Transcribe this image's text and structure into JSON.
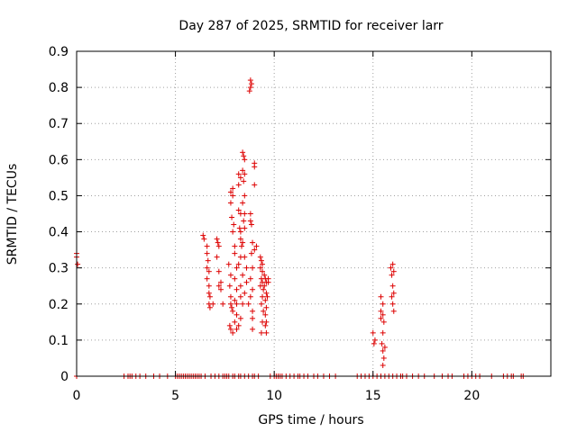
{
  "chart_data": {
    "type": "scatter",
    "title": "Day 287 of 2025, SRMTID for receiver larr",
    "xlabel": "GPS time / hours",
    "ylabel": "SRMTID / TECUs",
    "xlim": [
      0,
      24
    ],
    "ylim": [
      0,
      0.9
    ],
    "xticks": [
      0,
      5,
      10,
      15,
      20
    ],
    "xtick_labels": [
      "0",
      "5",
      "10",
      "15",
      "20"
    ],
    "yticks": [
      0,
      0.1,
      0.2,
      0.3,
      0.4,
      0.5,
      0.6,
      0.7,
      0.8,
      0.9
    ],
    "ytick_labels": [
      "0",
      "0.1",
      "0.2",
      "0.3",
      "0.4",
      "0.5",
      "0.6",
      "0.7",
      "0.8",
      "0.9"
    ],
    "grid": true,
    "marker": "+",
    "color": "#dd0000",
    "series": [
      {
        "name": "SRMTID",
        "points": [
          [
            0.0,
            0.34
          ],
          [
            0.0,
            0.33
          ],
          [
            0.05,
            0.31
          ],
          [
            0.0,
            0.0
          ],
          [
            6.4,
            0.39
          ],
          [
            6.45,
            0.38
          ],
          [
            6.6,
            0.36
          ],
          [
            6.6,
            0.34
          ],
          [
            6.65,
            0.32
          ],
          [
            6.6,
            0.3
          ],
          [
            6.7,
            0.29
          ],
          [
            6.6,
            0.27
          ],
          [
            6.7,
            0.25
          ],
          [
            6.7,
            0.23
          ],
          [
            6.75,
            0.22
          ],
          [
            6.7,
            0.2
          ],
          [
            6.75,
            0.19
          ],
          [
            6.9,
            0.2
          ],
          [
            7.1,
            0.38
          ],
          [
            7.15,
            0.37
          ],
          [
            7.2,
            0.36
          ],
          [
            7.1,
            0.33
          ],
          [
            7.2,
            0.29
          ],
          [
            7.3,
            0.26
          ],
          [
            7.2,
            0.25
          ],
          [
            7.3,
            0.24
          ],
          [
            7.4,
            0.2
          ],
          [
            7.7,
            0.31
          ],
          [
            7.8,
            0.28
          ],
          [
            7.75,
            0.25
          ],
          [
            7.8,
            0.22
          ],
          [
            7.8,
            0.2
          ],
          [
            7.85,
            0.19
          ],
          [
            7.9,
            0.18
          ],
          [
            7.75,
            0.14
          ],
          [
            7.8,
            0.13
          ],
          [
            7.9,
            0.12
          ],
          [
            7.8,
            0.48
          ],
          [
            7.9,
            0.5
          ],
          [
            7.8,
            0.51
          ],
          [
            7.9,
            0.52
          ],
          [
            7.85,
            0.44
          ],
          [
            7.95,
            0.42
          ],
          [
            7.9,
            0.4
          ],
          [
            8.0,
            0.36
          ],
          [
            8.0,
            0.34
          ],
          [
            8.1,
            0.3
          ],
          [
            8.0,
            0.27
          ],
          [
            8.1,
            0.24
          ],
          [
            8.0,
            0.21
          ],
          [
            8.1,
            0.2
          ],
          [
            8.1,
            0.17
          ],
          [
            8.0,
            0.15
          ],
          [
            8.2,
            0.14
          ],
          [
            8.1,
            0.13
          ],
          [
            8.2,
            0.56
          ],
          [
            8.2,
            0.53
          ],
          [
            8.3,
            0.55
          ],
          [
            8.2,
            0.46
          ],
          [
            8.3,
            0.45
          ],
          [
            8.25,
            0.41
          ],
          [
            8.3,
            0.4
          ],
          [
            8.3,
            0.38
          ],
          [
            8.35,
            0.36
          ],
          [
            8.3,
            0.33
          ],
          [
            8.2,
            0.31
          ],
          [
            8.4,
            0.28
          ],
          [
            8.3,
            0.25
          ],
          [
            8.3,
            0.22
          ],
          [
            8.4,
            0.2
          ],
          [
            8.3,
            0.16
          ],
          [
            8.4,
            0.62
          ],
          [
            8.45,
            0.61
          ],
          [
            8.5,
            0.6
          ],
          [
            8.4,
            0.57
          ],
          [
            8.5,
            0.56
          ],
          [
            8.45,
            0.54
          ],
          [
            8.5,
            0.5
          ],
          [
            8.4,
            0.48
          ],
          [
            8.5,
            0.45
          ],
          [
            8.45,
            0.43
          ],
          [
            8.5,
            0.41
          ],
          [
            8.4,
            0.37
          ],
          [
            8.5,
            0.33
          ],
          [
            8.6,
            0.3
          ],
          [
            8.6,
            0.26
          ],
          [
            8.5,
            0.23
          ],
          [
            8.7,
            0.2
          ],
          [
            8.8,
            0.82
          ],
          [
            8.8,
            0.8
          ],
          [
            8.75,
            0.79
          ],
          [
            8.85,
            0.81
          ],
          [
            8.8,
            0.45
          ],
          [
            8.8,
            0.43
          ],
          [
            8.85,
            0.42
          ],
          [
            8.9,
            0.37
          ],
          [
            8.85,
            0.34
          ],
          [
            8.9,
            0.3
          ],
          [
            8.8,
            0.27
          ],
          [
            8.9,
            0.24
          ],
          [
            8.8,
            0.22
          ],
          [
            8.9,
            0.18
          ],
          [
            8.9,
            0.16
          ],
          [
            8.9,
            0.13
          ],
          [
            9.0,
            0.59
          ],
          [
            9.0,
            0.58
          ],
          [
            9.0,
            0.53
          ],
          [
            9.1,
            0.36
          ],
          [
            9.0,
            0.35
          ],
          [
            9.3,
            0.33
          ],
          [
            9.35,
            0.32
          ],
          [
            9.4,
            0.31
          ],
          [
            9.3,
            0.3
          ],
          [
            9.4,
            0.29
          ],
          [
            9.35,
            0.27
          ],
          [
            9.4,
            0.26
          ],
          [
            9.3,
            0.25
          ],
          [
            9.45,
            0.24
          ],
          [
            9.4,
            0.22
          ],
          [
            9.35,
            0.2
          ],
          [
            9.45,
            0.18
          ],
          [
            9.4,
            0.15
          ],
          [
            9.35,
            0.12
          ],
          [
            9.5,
            0.28
          ],
          [
            9.55,
            0.27
          ],
          [
            9.6,
            0.26
          ],
          [
            9.5,
            0.25
          ],
          [
            9.6,
            0.23
          ],
          [
            9.55,
            0.21
          ],
          [
            9.6,
            0.19
          ],
          [
            9.55,
            0.17
          ],
          [
            9.6,
            0.15
          ],
          [
            9.55,
            0.14
          ],
          [
            9.6,
            0.12
          ],
          [
            9.7,
            0.27
          ],
          [
            9.7,
            0.26
          ],
          [
            9.65,
            0.22
          ],
          [
            15.0,
            0.12
          ],
          [
            15.1,
            0.1
          ],
          [
            15.05,
            0.09
          ],
          [
            15.4,
            0.22
          ],
          [
            15.5,
            0.2
          ],
          [
            15.4,
            0.18
          ],
          [
            15.5,
            0.17
          ],
          [
            15.4,
            0.16
          ],
          [
            15.55,
            0.15
          ],
          [
            15.5,
            0.12
          ],
          [
            15.45,
            0.09
          ],
          [
            15.6,
            0.08
          ],
          [
            15.5,
            0.07
          ],
          [
            15.55,
            0.05
          ],
          [
            15.5,
            0.03
          ],
          [
            15.9,
            0.3
          ],
          [
            16.0,
            0.31
          ],
          [
            16.05,
            0.29
          ],
          [
            15.95,
            0.28
          ],
          [
            16.0,
            0.25
          ],
          [
            16.05,
            0.23
          ],
          [
            15.95,
            0.22
          ],
          [
            16.0,
            0.2
          ],
          [
            16.05,
            0.18
          ],
          [
            2.4,
            0
          ],
          [
            2.6,
            0
          ],
          [
            2.7,
            0
          ],
          [
            2.8,
            0
          ],
          [
            3.0,
            0
          ],
          [
            3.2,
            0
          ],
          [
            3.5,
            0
          ],
          [
            3.9,
            0
          ],
          [
            4.2,
            0
          ],
          [
            4.6,
            0
          ],
          [
            5.0,
            0
          ],
          [
            5.1,
            0
          ],
          [
            5.2,
            0
          ],
          [
            5.3,
            0
          ],
          [
            5.4,
            0
          ],
          [
            5.5,
            0
          ],
          [
            5.6,
            0
          ],
          [
            5.7,
            0
          ],
          [
            5.8,
            0
          ],
          [
            5.9,
            0
          ],
          [
            6.0,
            0
          ],
          [
            6.1,
            0
          ],
          [
            6.2,
            0
          ],
          [
            6.3,
            0
          ],
          [
            6.5,
            0
          ],
          [
            6.8,
            0
          ],
          [
            7.0,
            0
          ],
          [
            7.2,
            0
          ],
          [
            7.4,
            0
          ],
          [
            7.5,
            0
          ],
          [
            7.6,
            0
          ],
          [
            7.7,
            0
          ],
          [
            7.9,
            0
          ],
          [
            8.0,
            0
          ],
          [
            8.2,
            0
          ],
          [
            8.3,
            0
          ],
          [
            8.5,
            0
          ],
          [
            8.7,
            0
          ],
          [
            8.9,
            0
          ],
          [
            9.0,
            0
          ],
          [
            9.2,
            0
          ],
          [
            9.8,
            0
          ],
          [
            10.0,
            0
          ],
          [
            10.1,
            0
          ],
          [
            10.2,
            0
          ],
          [
            10.3,
            0
          ],
          [
            10.4,
            0
          ],
          [
            10.6,
            0
          ],
          [
            10.8,
            0
          ],
          [
            11.0,
            0
          ],
          [
            11.2,
            0
          ],
          [
            11.3,
            0
          ],
          [
            11.5,
            0
          ],
          [
            11.7,
            0
          ],
          [
            12.0,
            0
          ],
          [
            12.2,
            0
          ],
          [
            12.5,
            0
          ],
          [
            12.8,
            0
          ],
          [
            13.1,
            0
          ],
          [
            14.2,
            0
          ],
          [
            14.4,
            0
          ],
          [
            14.6,
            0
          ],
          [
            14.8,
            0
          ],
          [
            15.0,
            0
          ],
          [
            15.2,
            0
          ],
          [
            15.4,
            0
          ],
          [
            15.6,
            0
          ],
          [
            15.8,
            0
          ],
          [
            16.0,
            0
          ],
          [
            16.2,
            0
          ],
          [
            16.4,
            0
          ],
          [
            16.5,
            0
          ],
          [
            16.7,
            0
          ],
          [
            17.0,
            0
          ],
          [
            17.3,
            0
          ],
          [
            17.6,
            0
          ],
          [
            18.1,
            0
          ],
          [
            18.5,
            0
          ],
          [
            18.8,
            0
          ],
          [
            19.0,
            0
          ],
          [
            19.6,
            0
          ],
          [
            19.8,
            0
          ],
          [
            20.0,
            0
          ],
          [
            20.2,
            0
          ],
          [
            20.4,
            0
          ],
          [
            21.0,
            0
          ],
          [
            21.6,
            0
          ],
          [
            21.8,
            0
          ],
          [
            22.0,
            0
          ],
          [
            22.1,
            0
          ],
          [
            22.5,
            0
          ],
          [
            22.6,
            0
          ]
        ]
      }
    ]
  }
}
